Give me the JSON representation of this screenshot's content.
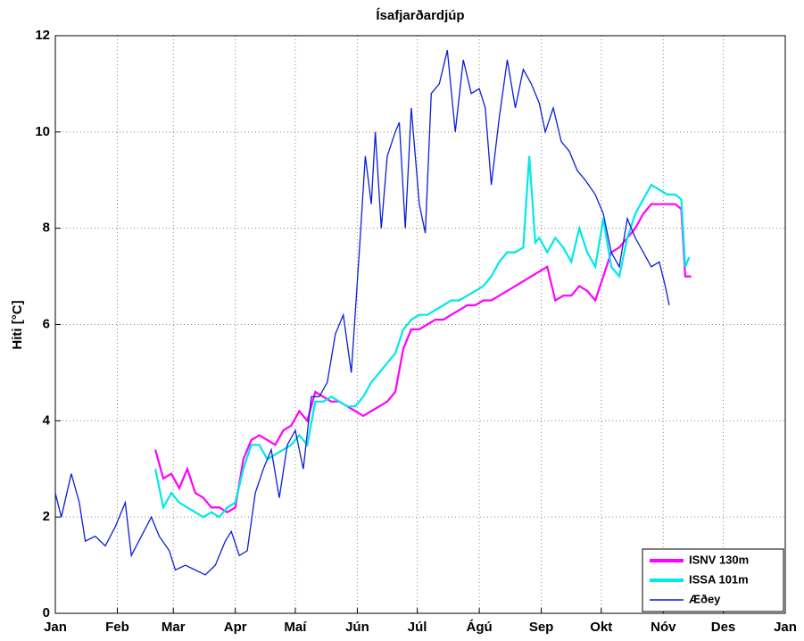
{
  "chart_data": {
    "type": "line",
    "title": "Ísafjarðardjúp",
    "y_label": "Hiti [°C]",
    "xlim": [
      0,
      365
    ],
    "ylim": [
      0,
      12
    ],
    "xticks": [
      {
        "value": 0,
        "label": "Jan"
      },
      {
        "value": 31,
        "label": "Feb"
      },
      {
        "value": 59,
        "label": "Mar"
      },
      {
        "value": 90,
        "label": "Apr"
      },
      {
        "value": 120,
        "label": "Maí"
      },
      {
        "value": 151,
        "label": "Jún"
      },
      {
        "value": 181,
        "label": "Júl"
      },
      {
        "value": 212,
        "label": "Ágú"
      },
      {
        "value": 243,
        "label": "Sep"
      },
      {
        "value": 273,
        "label": "Okt"
      },
      {
        "value": 304,
        "label": "Nóv"
      },
      {
        "value": 334,
        "label": "Des"
      },
      {
        "value": 365,
        "label": "Jan"
      }
    ],
    "yticks": [
      0,
      2,
      4,
      6,
      8,
      10,
      12
    ],
    "grid": true,
    "legend": "lower-right",
    "series": [
      {
        "name": "ISNV 130m",
        "color": "#ff00ff",
        "x": [
          50,
          54,
          58,
          62,
          66,
          70,
          74,
          78,
          82,
          86,
          90,
          94,
          98,
          102,
          106,
          110,
          114,
          118,
          122,
          126,
          130,
          134,
          138,
          142,
          146,
          150,
          154,
          158,
          162,
          166,
          170,
          174,
          178,
          182,
          186,
          190,
          194,
          198,
          202,
          206,
          210,
          214,
          218,
          222,
          226,
          230,
          234,
          238,
          242,
          246,
          250,
          254,
          258,
          262,
          266,
          270,
          274,
          278,
          282,
          286,
          290,
          294,
          298,
          302,
          306,
          310,
          313,
          315,
          318
        ],
        "values": [
          3.4,
          2.8,
          2.9,
          2.6,
          3.0,
          2.5,
          2.4,
          2.2,
          2.2,
          2.1,
          2.2,
          3.2,
          3.6,
          3.7,
          3.6,
          3.5,
          3.8,
          3.9,
          4.2,
          4.0,
          4.6,
          4.5,
          4.4,
          4.4,
          4.3,
          4.2,
          4.1,
          4.2,
          4.3,
          4.4,
          4.6,
          5.5,
          5.9,
          5.9,
          6.0,
          6.1,
          6.1,
          6.2,
          6.3,
          6.4,
          6.4,
          6.5,
          6.5,
          6.6,
          6.7,
          6.8,
          6.9,
          7.0,
          7.1,
          7.2,
          6.5,
          6.6,
          6.6,
          6.8,
          6.7,
          6.5,
          7.0,
          7.5,
          7.6,
          7.8,
          8.0,
          8.3,
          8.5,
          8.5,
          8.5,
          8.5,
          8.4,
          7.0,
          7.0
        ]
      },
      {
        "name": "ISSA 101m",
        "color": "#00e8e8",
        "x": [
          50,
          54,
          58,
          62,
          66,
          70,
          74,
          78,
          82,
          86,
          90,
          94,
          98,
          102,
          106,
          110,
          114,
          118,
          122,
          126,
          130,
          134,
          138,
          142,
          146,
          150,
          154,
          158,
          162,
          166,
          170,
          174,
          178,
          182,
          186,
          190,
          194,
          198,
          202,
          206,
          210,
          214,
          218,
          222,
          226,
          230,
          234,
          237,
          240,
          242,
          246,
          250,
          254,
          258,
          262,
          266,
          270,
          274,
          278,
          282,
          286,
          290,
          294,
          298,
          302,
          306,
          310,
          313,
          315,
          317
        ],
        "values": [
          3.0,
          2.2,
          2.5,
          2.3,
          2.2,
          2.1,
          2.0,
          2.1,
          2.0,
          2.2,
          2.3,
          3.0,
          3.5,
          3.5,
          3.2,
          3.3,
          3.4,
          3.5,
          3.7,
          3.5,
          4.4,
          4.4,
          4.5,
          4.4,
          4.3,
          4.3,
          4.5,
          4.8,
          5.0,
          5.2,
          5.4,
          5.9,
          6.1,
          6.2,
          6.2,
          6.3,
          6.4,
          6.5,
          6.5,
          6.6,
          6.7,
          6.8,
          7.0,
          7.3,
          7.5,
          7.5,
          7.6,
          9.5,
          7.7,
          7.8,
          7.5,
          7.8,
          7.6,
          7.3,
          8.0,
          7.5,
          7.2,
          8.2,
          7.2,
          7.0,
          7.8,
          8.3,
          8.6,
          8.9,
          8.8,
          8.7,
          8.7,
          8.6,
          7.2,
          7.4
        ]
      },
      {
        "name": "Æðey",
        "color": "#0a1fd6",
        "x": [
          0,
          3,
          8,
          12,
          15,
          20,
          25,
          30,
          35,
          38,
          43,
          48,
          52,
          57,
          60,
          65,
          70,
          75,
          80,
          85,
          88,
          92,
          96,
          100,
          104,
          108,
          112,
          116,
          120,
          124,
          128,
          132,
          136,
          140,
          144,
          148,
          152,
          155,
          158,
          160,
          163,
          166,
          170,
          172,
          175,
          178,
          182,
          185,
          188,
          192,
          196,
          200,
          204,
          208,
          212,
          215,
          218,
          222,
          226,
          230,
          234,
          238,
          242,
          245,
          249,
          253,
          257,
          261,
          265,
          270,
          274,
          278,
          282,
          286,
          290,
          294,
          298,
          302,
          305,
          307
        ],
        "values": [
          2.5,
          2.0,
          2.9,
          2.3,
          1.5,
          1.6,
          1.4,
          1.8,
          2.3,
          1.2,
          1.6,
          2.0,
          1.6,
          1.3,
          0.9,
          1.0,
          0.9,
          0.8,
          1.0,
          1.5,
          1.7,
          1.2,
          1.3,
          2.5,
          3.0,
          3.4,
          2.4,
          3.5,
          3.8,
          3.0,
          4.5,
          4.5,
          4.8,
          5.8,
          6.2,
          5.0,
          7.5,
          9.5,
          8.5,
          10.0,
          8.0,
          9.5,
          10.0,
          10.2,
          8.0,
          10.5,
          8.5,
          7.9,
          10.8,
          11.0,
          11.7,
          10.0,
          11.5,
          10.8,
          10.9,
          10.5,
          8.9,
          10.3,
          11.5,
          10.5,
          11.3,
          11.0,
          10.6,
          10.0,
          10.5,
          9.8,
          9.6,
          9.2,
          9.0,
          8.7,
          8.3,
          7.5,
          7.2,
          8.2,
          7.8,
          7.5,
          7.2,
          7.3,
          6.8,
          6.4
        ]
      }
    ]
  }
}
